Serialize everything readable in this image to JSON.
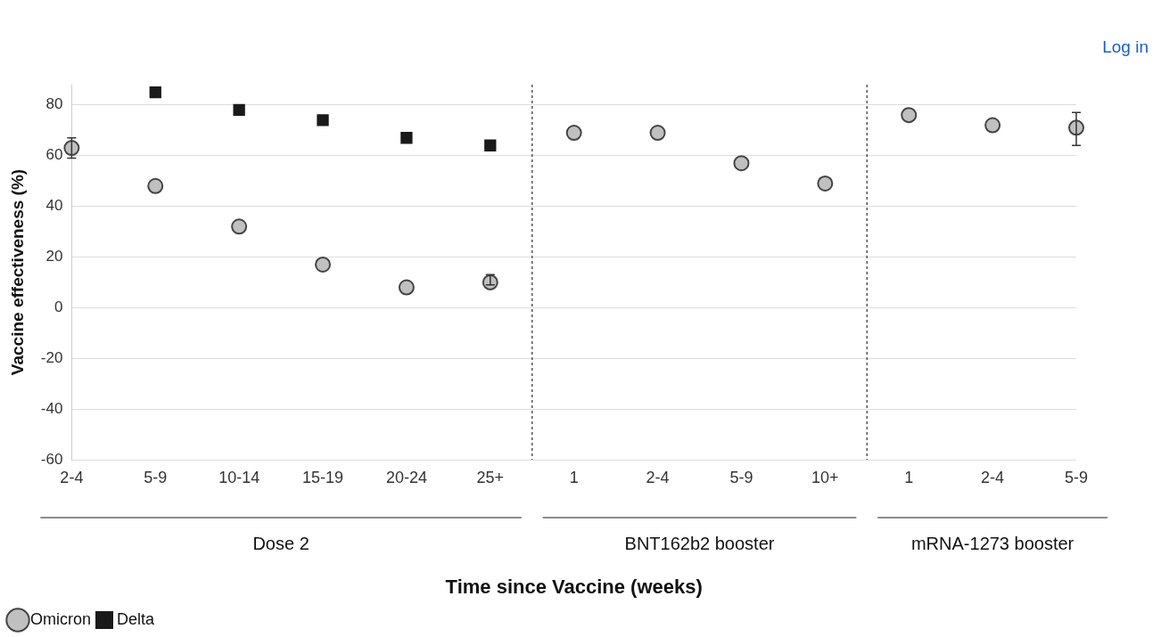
{
  "chart_data": {
    "type": "scatter",
    "xlabel": "Time since Vaccine (weeks)",
    "ylabel": "Vaccine effectiveness (%)",
    "categories": [
      "2-4",
      "5-9",
      "10-14",
      "15-19",
      "20-24",
      "25+",
      "1",
      "2-4",
      "5-9",
      "10+",
      "1",
      "2-4",
      "5-9"
    ],
    "series": [
      {
        "name": "Omicron",
        "color": "#c0c0c0",
        "marker": "circle",
        "values": [
          63,
          48,
          32,
          17,
          8,
          10,
          69,
          69,
          57,
          49,
          76,
          72,
          71
        ],
        "errors": [
          [
            59,
            67
          ],
          null,
          null,
          null,
          null,
          [
            9,
            13
          ],
          null,
          null,
          null,
          null,
          null,
          null,
          [
            64,
            77
          ]
        ]
      },
      {
        "name": "Delta",
        "color": "#1a1a1a",
        "marker": "square",
        "values": [
          null,
          85,
          78,
          74,
          67,
          64,
          null,
          null,
          null,
          null,
          null,
          null,
          null
        ]
      }
    ],
    "ylim": [
      -60,
      88
    ],
    "yticks": [
      -60,
      -40,
      -20,
      0,
      20,
      40,
      60,
      80
    ],
    "grid": "y",
    "legend": "bottom left",
    "annotations": [
      "Dose 2",
      "BNT162b2 booster",
      "mRNA-1273 booster",
      "Log in"
    ]
  }
}
